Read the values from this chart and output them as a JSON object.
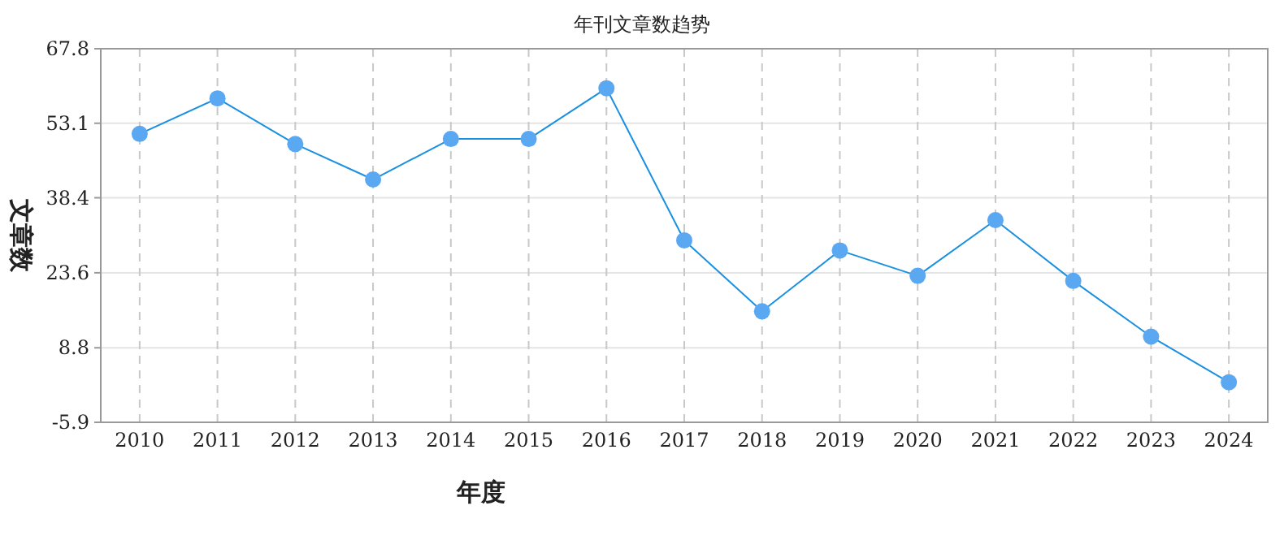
{
  "chart_data": {
    "type": "line",
    "title": "年刊文章数趋势",
    "xlabel": "年度",
    "ylabel": "文章数",
    "categories": [
      "2010",
      "2011",
      "2012",
      "2013",
      "2014",
      "2015",
      "2016",
      "2017",
      "2018",
      "2019",
      "2020",
      "2021",
      "2022",
      "2023",
      "2024"
    ],
    "series": [
      {
        "color": "#1a90e0",
        "values": [
          51,
          58,
          49,
          42,
          50,
          50,
          60,
          30,
          16,
          28,
          23,
          34,
          22,
          11,
          2
        ]
      }
    ],
    "ylim": [
      -5.9,
      67.8
    ],
    "yticks": [
      -5.9,
      8.8,
      23.6,
      38.4,
      53.1,
      67.8
    ],
    "grid": true,
    "marker": "circle",
    "line_style": "solid"
  }
}
